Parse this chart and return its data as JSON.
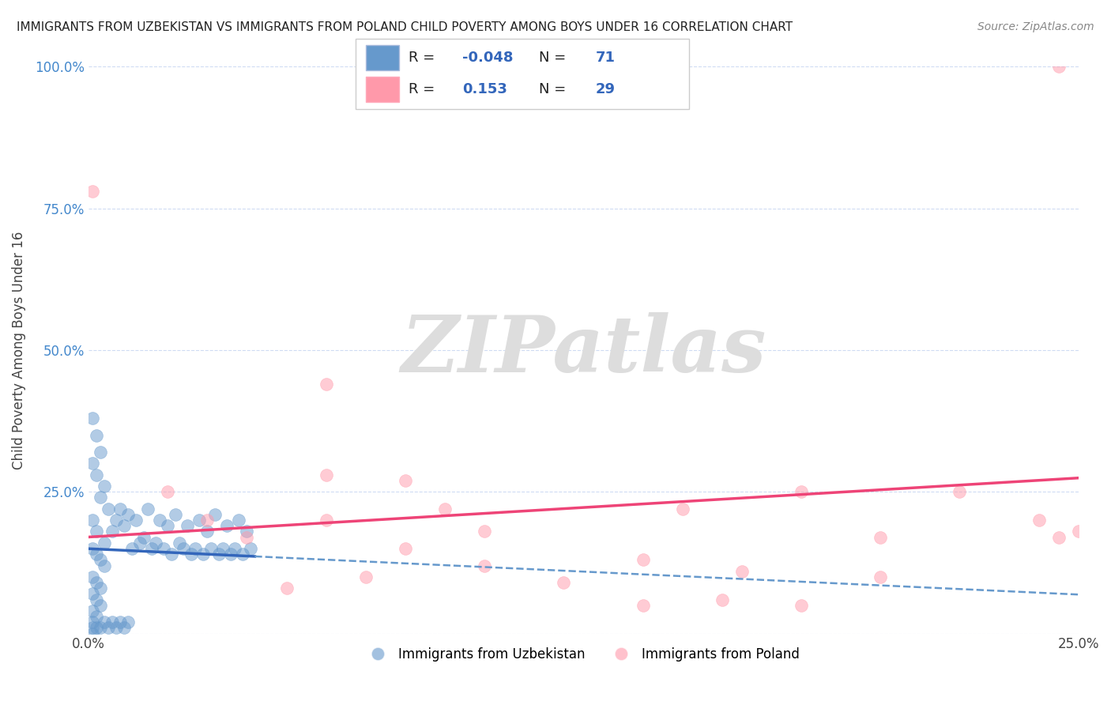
{
  "title": "IMMIGRANTS FROM UZBEKISTAN VS IMMIGRANTS FROM POLAND CHILD POVERTY AMONG BOYS UNDER 16 CORRELATION CHART",
  "source": "Source: ZipAtlas.com",
  "ylabel": "Child Poverty Among Boys Under 16",
  "xlim": [
    0.0,
    0.25
  ],
  "ylim": [
    0.0,
    1.0
  ],
  "uzbekistan_color": "#6699cc",
  "poland_color": "#ff99aa",
  "uzbekistan_line_color": "#3366bb",
  "poland_line_color": "#ee4477",
  "uzbekistan_R": -0.048,
  "uzbekistan_N": 71,
  "poland_R": 0.153,
  "poland_N": 29,
  "watermark": "ZIPatlas",
  "watermark_color": "#dddddd",
  "legend_label_uzbekistan": "Immigrants from Uzbekistan",
  "legend_label_poland": "Immigrants from Poland",
  "uzbekistan_scatter": [
    [
      0.001,
      0.38
    ],
    [
      0.002,
      0.35
    ],
    [
      0.003,
      0.32
    ],
    [
      0.001,
      0.3
    ],
    [
      0.002,
      0.28
    ],
    [
      0.004,
      0.26
    ],
    [
      0.003,
      0.24
    ],
    [
      0.005,
      0.22
    ],
    [
      0.001,
      0.2
    ],
    [
      0.002,
      0.18
    ],
    [
      0.004,
      0.16
    ],
    [
      0.006,
      0.18
    ],
    [
      0.007,
      0.2
    ],
    [
      0.008,
      0.22
    ],
    [
      0.009,
      0.19
    ],
    [
      0.01,
      0.21
    ],
    [
      0.012,
      0.2
    ],
    [
      0.015,
      0.22
    ],
    [
      0.018,
      0.2
    ],
    [
      0.02,
      0.19
    ],
    [
      0.022,
      0.21
    ],
    [
      0.025,
      0.19
    ],
    [
      0.028,
      0.2
    ],
    [
      0.03,
      0.18
    ],
    [
      0.032,
      0.21
    ],
    [
      0.035,
      0.19
    ],
    [
      0.038,
      0.2
    ],
    [
      0.04,
      0.18
    ],
    [
      0.001,
      0.15
    ],
    [
      0.002,
      0.14
    ],
    [
      0.003,
      0.13
    ],
    [
      0.004,
      0.12
    ],
    [
      0.001,
      0.1
    ],
    [
      0.002,
      0.09
    ],
    [
      0.003,
      0.08
    ],
    [
      0.001,
      0.07
    ],
    [
      0.002,
      0.06
    ],
    [
      0.003,
      0.05
    ],
    [
      0.001,
      0.04
    ],
    [
      0.002,
      0.03
    ],
    [
      0.001,
      0.02
    ],
    [
      0.001,
      0.01
    ],
    [
      0.002,
      0.01
    ],
    [
      0.001,
      0.0
    ],
    [
      0.003,
      0.01
    ],
    [
      0.004,
      0.02
    ],
    [
      0.005,
      0.01
    ],
    [
      0.006,
      0.02
    ],
    [
      0.007,
      0.01
    ],
    [
      0.008,
      0.02
    ],
    [
      0.009,
      0.01
    ],
    [
      0.01,
      0.02
    ],
    [
      0.011,
      0.15
    ],
    [
      0.013,
      0.16
    ],
    [
      0.014,
      0.17
    ],
    [
      0.016,
      0.15
    ],
    [
      0.017,
      0.16
    ],
    [
      0.019,
      0.15
    ],
    [
      0.021,
      0.14
    ],
    [
      0.023,
      0.16
    ],
    [
      0.024,
      0.15
    ],
    [
      0.026,
      0.14
    ],
    [
      0.027,
      0.15
    ],
    [
      0.029,
      0.14
    ],
    [
      0.031,
      0.15
    ],
    [
      0.033,
      0.14
    ],
    [
      0.034,
      0.15
    ],
    [
      0.036,
      0.14
    ],
    [
      0.037,
      0.15
    ],
    [
      0.039,
      0.14
    ],
    [
      0.041,
      0.15
    ]
  ],
  "poland_scatter": [
    [
      0.001,
      0.78
    ],
    [
      0.245,
      1.0
    ],
    [
      0.06,
      0.44
    ],
    [
      0.02,
      0.25
    ],
    [
      0.08,
      0.27
    ],
    [
      0.15,
      0.22
    ],
    [
      0.06,
      0.28
    ],
    [
      0.18,
      0.25
    ],
    [
      0.04,
      0.17
    ],
    [
      0.1,
      0.12
    ],
    [
      0.14,
      0.13
    ],
    [
      0.07,
      0.1
    ],
    [
      0.2,
      0.1
    ],
    [
      0.165,
      0.11
    ],
    [
      0.12,
      0.09
    ],
    [
      0.08,
      0.15
    ],
    [
      0.03,
      0.2
    ],
    [
      0.2,
      0.17
    ],
    [
      0.18,
      0.05
    ],
    [
      0.16,
      0.06
    ],
    [
      0.14,
      0.05
    ],
    [
      0.22,
      0.25
    ],
    [
      0.24,
      0.2
    ],
    [
      0.1,
      0.18
    ],
    [
      0.06,
      0.2
    ],
    [
      0.09,
      0.22
    ],
    [
      0.05,
      0.08
    ],
    [
      0.25,
      0.18
    ],
    [
      0.245,
      0.17
    ]
  ]
}
